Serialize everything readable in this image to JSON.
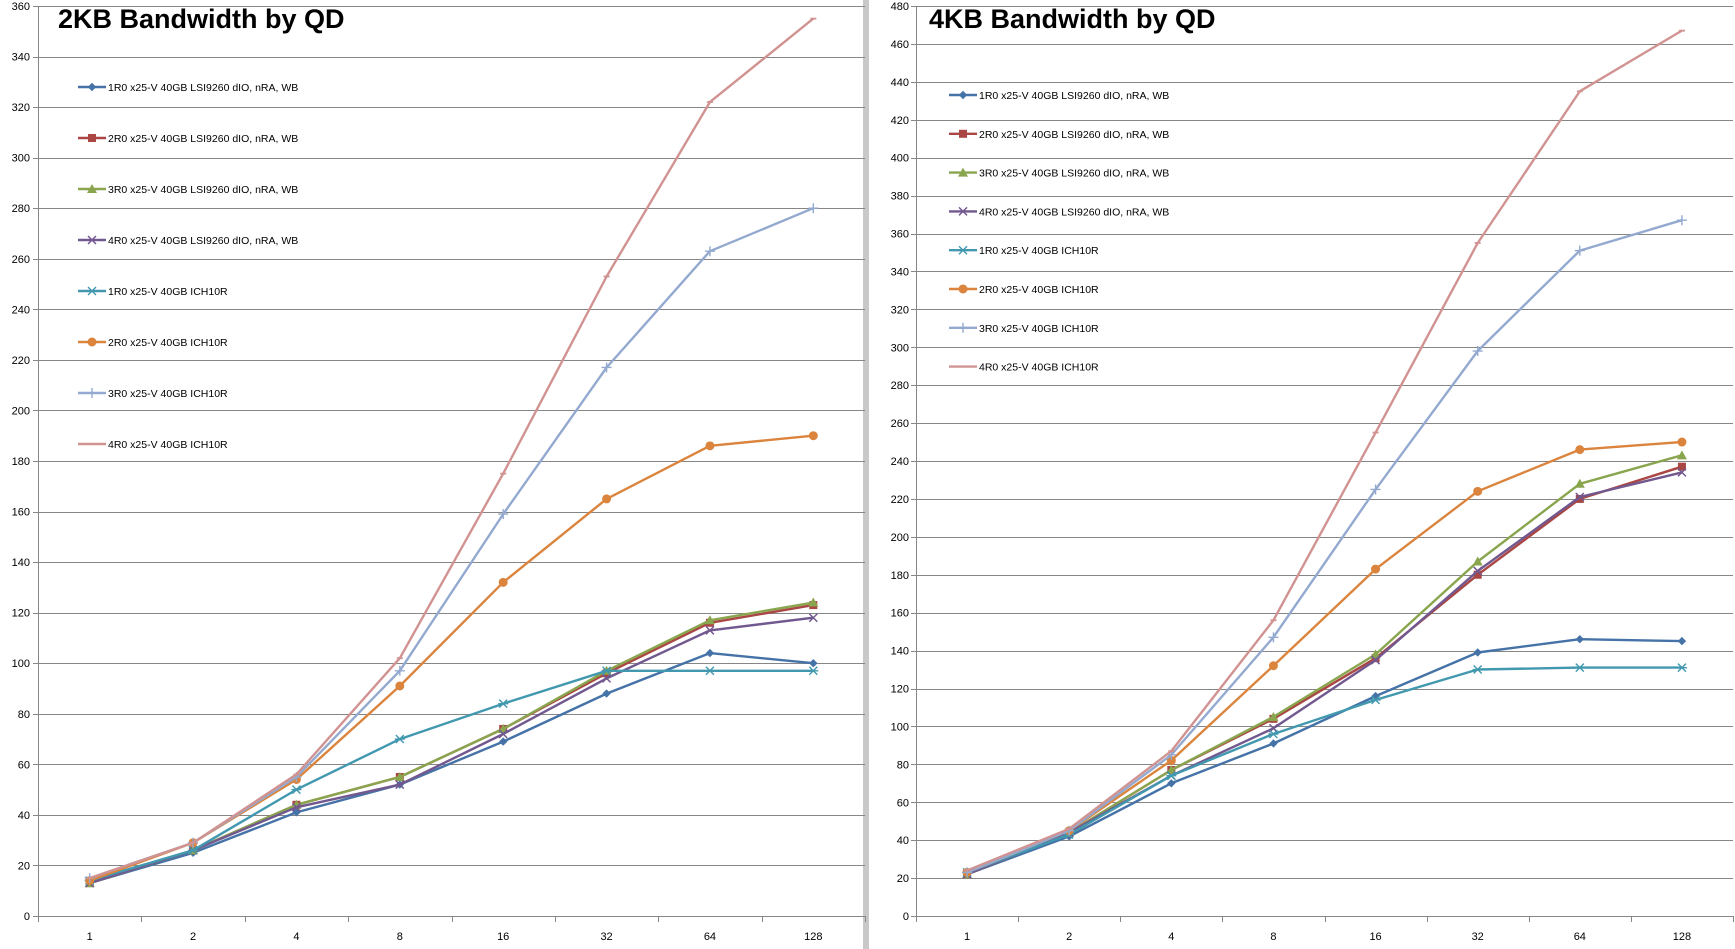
{
  "chart_data": [
    {
      "type": "line",
      "title": "2KB Bandwidth by QD",
      "xlabel": "",
      "ylabel": "",
      "x": [
        "1",
        "2",
        "4",
        "8",
        "16",
        "32",
        "64",
        "128"
      ],
      "ylim": [
        0,
        360
      ],
      "ytick_step": 20,
      "grid": true,
      "legend_position": "left",
      "series": [
        {
          "name": "1R0 x25-V 40GB LSI9260 dIO, nRA, WB",
          "color": "#4572A7",
          "marker": "diamond",
          "values": [
            13,
            25,
            41,
            52,
            69,
            88,
            104,
            100
          ]
        },
        {
          "name": "2R0 x25-V 40GB LSI9260 dIO, nRA, WB",
          "color": "#AA4643",
          "marker": "square",
          "values": [
            13,
            26,
            44,
            55,
            74,
            96,
            116,
            123
          ]
        },
        {
          "name": "3R0 x25-V 40GB LSI9260 dIO, nRA, WB",
          "color": "#89A54E",
          "marker": "triangle",
          "values": [
            13,
            26,
            44,
            55,
            74,
            97,
            117,
            124
          ]
        },
        {
          "name": "4R0 x25-V 40GB LSI9260 dIO, nRA, WB",
          "color": "#71588F",
          "marker": "x",
          "values": [
            13,
            26,
            43,
            52,
            72,
            94,
            113,
            118
          ]
        },
        {
          "name": "1R0 x25-V 40GB ICH10R",
          "color": "#4198AF",
          "marker": "star",
          "values": [
            14,
            26,
            50,
            70,
            84,
            97,
            97,
            97
          ]
        },
        {
          "name": "2R0 x25-V 40GB ICH10R",
          "color": "#DB843D",
          "marker": "circle",
          "values": [
            14,
            29,
            54,
            91,
            132,
            165,
            186,
            190
          ]
        },
        {
          "name": "3R0 x25-V 40GB ICH10R",
          "color": "#93A9CF",
          "marker": "plus",
          "values": [
            15,
            29,
            55,
            97,
            159,
            217,
            263,
            280
          ]
        },
        {
          "name": "4R0 x25-V 40GB ICH10R",
          "color": "#D19392",
          "marker": "dash",
          "values": [
            15,
            29,
            56,
            102,
            175,
            253,
            322,
            355
          ]
        }
      ]
    },
    {
      "type": "line",
      "title": "4KB Bandwidth by QD",
      "xlabel": "",
      "ylabel": "",
      "x": [
        "1",
        "2",
        "4",
        "8",
        "16",
        "32",
        "64",
        "128"
      ],
      "ylim": [
        0,
        480
      ],
      "ytick_step": 20,
      "grid": true,
      "legend_position": "left",
      "series": [
        {
          "name": "1R0 x25-V 40GB LSI9260 dIO, nRA, WB",
          "color": "#4572A7",
          "marker": "diamond",
          "values": [
            22,
            42,
            70,
            91,
            116,
            139,
            146,
            145
          ]
        },
        {
          "name": "2R0 x25-V 40GB LSI9260 dIO, nRA, WB",
          "color": "#AA4643",
          "marker": "square",
          "values": [
            22,
            44,
            77,
            104,
            136,
            180,
            220,
            237
          ]
        },
        {
          "name": "3R0 x25-V 40GB LSI9260 dIO, nRA, WB",
          "color": "#89A54E",
          "marker": "triangle",
          "values": [
            22,
            44,
            77,
            105,
            138,
            187,
            228,
            243
          ]
        },
        {
          "name": "4R0 x25-V 40GB LSI9260 dIO, nRA, WB",
          "color": "#71588F",
          "marker": "x",
          "values": [
            22,
            44,
            74,
            99,
            135,
            182,
            221,
            234
          ]
        },
        {
          "name": "1R0 x25-V 40GB ICH10R",
          "color": "#4198AF",
          "marker": "star",
          "values": [
            23,
            43,
            74,
            96,
            114,
            130,
            131,
            131
          ]
        },
        {
          "name": "2R0 x25-V 40GB ICH10R",
          "color": "#DB843D",
          "marker": "circle",
          "values": [
            23,
            45,
            82,
            132,
            183,
            224,
            246,
            250
          ]
        },
        {
          "name": "3R0 x25-V 40GB ICH10R",
          "color": "#93A9CF",
          "marker": "plus",
          "values": [
            23,
            45,
            85,
            147,
            225,
            298,
            351,
            367
          ]
        },
        {
          "name": "4R0 x25-V 40GB ICH10R",
          "color": "#D19392",
          "marker": "dash",
          "values": [
            24,
            46,
            87,
            156,
            255,
            355,
            435,
            467
          ]
        }
      ]
    }
  ]
}
